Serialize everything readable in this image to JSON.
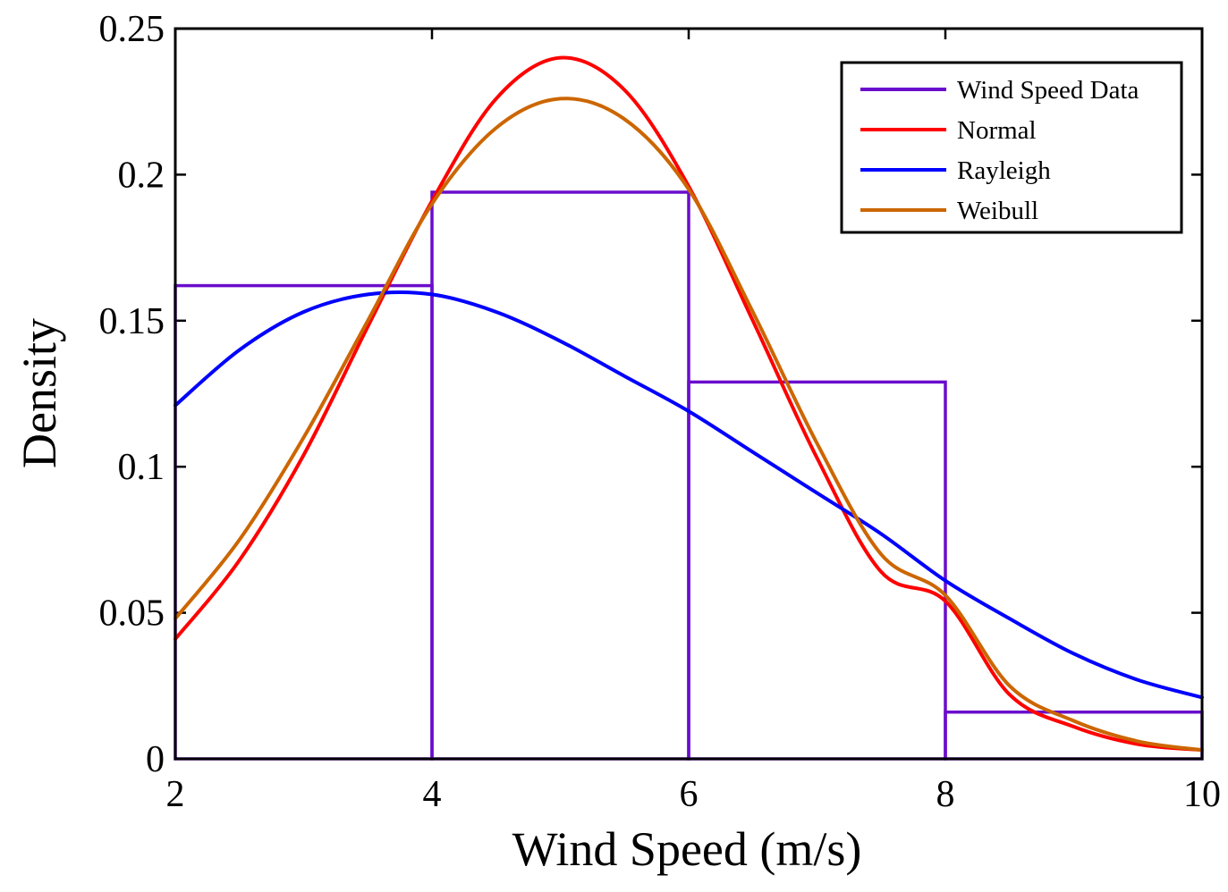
{
  "chart_data": {
    "type": "line",
    "title": "",
    "xlabel": "Wind Speed (m/s)",
    "ylabel": "Density",
    "xlim": [
      2,
      10
    ],
    "ylim": [
      0,
      0.25
    ],
    "xticks": [
      2,
      4,
      6,
      8,
      10
    ],
    "xtick_labels": [
      "2",
      "4",
      "6",
      "8",
      "10"
    ],
    "yticks": [
      0,
      0.05,
      0.1,
      0.15,
      0.2,
      0.25
    ],
    "ytick_labels": [
      "0",
      "0.05",
      "0.1",
      "0.15",
      "0.2",
      "0.25"
    ],
    "grid": false,
    "legend_position": "top-right",
    "histogram": {
      "name": "Wind Speed Data",
      "color": "#6a0dcc",
      "bin_edges": [
        2,
        4,
        6,
        8,
        10
      ],
      "densities": [
        0.162,
        0.194,
        0.129,
        0.016
      ]
    },
    "series": [
      {
        "name": "Normal",
        "color": "#ff0000",
        "x": [
          2,
          2.5,
          3,
          3.5,
          4,
          4.5,
          5,
          5.5,
          6,
          6.5,
          7,
          7.5,
          8,
          8.5,
          9,
          9.5,
          10
        ],
        "y": [
          0.041,
          0.068,
          0.104,
          0.148,
          0.191,
          0.226,
          0.24,
          0.229,
          0.196,
          0.15,
          0.103,
          0.064,
          0.054,
          0.022,
          0.011,
          0.005,
          0.003
        ]
      },
      {
        "name": "Rayleigh",
        "color": "#0000ff",
        "x": [
          2,
          2.5,
          3,
          3.5,
          4,
          4.5,
          5,
          5.5,
          6,
          6.5,
          7,
          7.5,
          8,
          8.5,
          9,
          9.5,
          10
        ],
        "y": [
          0.121,
          0.14,
          0.153,
          0.159,
          0.159,
          0.153,
          0.143,
          0.131,
          0.119,
          0.105,
          0.091,
          0.077,
          0.061,
          0.048,
          0.036,
          0.027,
          0.021
        ]
      },
      {
        "name": "Weibull",
        "color": "#cc6600",
        "x": [
          2,
          2.5,
          3,
          3.5,
          4,
          4.5,
          5,
          5.5,
          6,
          6.5,
          7,
          7.5,
          8,
          8.5,
          9,
          9.5,
          10
        ],
        "y": [
          0.048,
          0.075,
          0.11,
          0.15,
          0.19,
          0.216,
          0.226,
          0.219,
          0.195,
          0.153,
          0.108,
          0.07,
          0.056,
          0.025,
          0.013,
          0.006,
          0.003
        ]
      }
    ]
  }
}
